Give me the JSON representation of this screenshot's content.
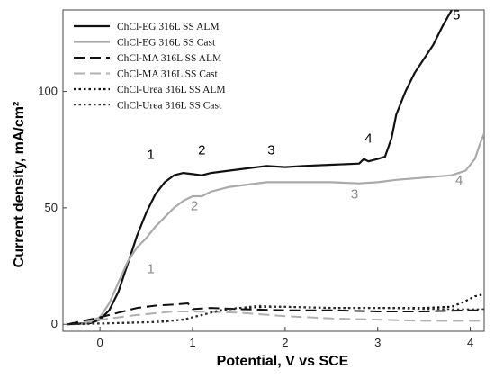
{
  "chart_data": {
    "type": "line",
    "xlabel": "Potential, V vs SCE",
    "ylabel": "Current density, mA/cm²",
    "xlim": [
      -0.4,
      4.15
    ],
    "ylim": [
      -3,
      135
    ],
    "xticks": [
      0,
      1,
      2,
      3,
      4
    ],
    "yticks": [
      0,
      50,
      100
    ],
    "grid": false,
    "legend_position": "top-left",
    "series": [
      {
        "name": "ChCl-EG 316L SS ALM",
        "color": "#111111",
        "dash": "solid",
        "width": 2.2,
        "points": [
          [
            -0.35,
            0
          ],
          [
            -0.1,
            0.5
          ],
          [
            0,
            2
          ],
          [
            0.1,
            6
          ],
          [
            0.2,
            14
          ],
          [
            0.3,
            26
          ],
          [
            0.4,
            38
          ],
          [
            0.5,
            48
          ],
          [
            0.6,
            56
          ],
          [
            0.7,
            61
          ],
          [
            0.8,
            64
          ],
          [
            0.9,
            65
          ],
          [
            1.0,
            64.5
          ],
          [
            1.1,
            64
          ],
          [
            1.2,
            65
          ],
          [
            1.4,
            66
          ],
          [
            1.6,
            67
          ],
          [
            1.8,
            68
          ],
          [
            2.0,
            67.5
          ],
          [
            2.2,
            68
          ],
          [
            2.5,
            68.5
          ],
          [
            2.8,
            69
          ],
          [
            2.85,
            71
          ],
          [
            2.9,
            70
          ],
          [
            3.0,
            71
          ],
          [
            3.08,
            72
          ],
          [
            3.15,
            80
          ],
          [
            3.2,
            90
          ],
          [
            3.3,
            100
          ],
          [
            3.4,
            108
          ],
          [
            3.5,
            114
          ],
          [
            3.6,
            120
          ],
          [
            3.7,
            128
          ],
          [
            3.8,
            135
          ]
        ]
      },
      {
        "name": "ChCl-EG 316L SS Cast",
        "color": "#aaaaaa",
        "dash": "solid",
        "width": 2.2,
        "points": [
          [
            -0.2,
            0
          ],
          [
            0,
            3
          ],
          [
            0.1,
            9
          ],
          [
            0.2,
            18
          ],
          [
            0.3,
            27
          ],
          [
            0.4,
            33
          ],
          [
            0.5,
            37
          ],
          [
            0.6,
            42
          ],
          [
            0.7,
            46
          ],
          [
            0.8,
            50
          ],
          [
            0.9,
            53
          ],
          [
            1.0,
            55
          ],
          [
            1.1,
            55
          ],
          [
            1.2,
            57
          ],
          [
            1.4,
            59
          ],
          [
            1.6,
            60
          ],
          [
            1.8,
            61
          ],
          [
            2.0,
            61
          ],
          [
            2.2,
            61
          ],
          [
            2.5,
            61
          ],
          [
            2.8,
            60.5
          ],
          [
            3.0,
            61
          ],
          [
            3.2,
            62
          ],
          [
            3.5,
            63
          ],
          [
            3.8,
            64
          ],
          [
            3.95,
            66
          ],
          [
            4.05,
            71
          ],
          [
            4.1,
            77
          ],
          [
            4.15,
            82
          ]
        ]
      },
      {
        "name": "ChCl-MA 316L SS ALM",
        "color": "#111111",
        "dash": "12,6",
        "width": 2,
        "points": [
          [
            -0.35,
            0
          ],
          [
            0,
            3
          ],
          [
            0.2,
            5
          ],
          [
            0.4,
            7
          ],
          [
            0.6,
            8
          ],
          [
            0.8,
            8.5
          ],
          [
            0.95,
            9
          ],
          [
            1.0,
            6.5
          ],
          [
            1.2,
            7
          ],
          [
            1.5,
            6.5
          ],
          [
            2.0,
            6
          ],
          [
            2.5,
            6
          ],
          [
            3.0,
            5.5
          ],
          [
            3.5,
            5.5
          ],
          [
            4.0,
            6
          ],
          [
            4.15,
            6
          ]
        ]
      },
      {
        "name": "ChCl-MA 316L SS Cast",
        "color": "#b0b0b0",
        "dash": "12,6",
        "width": 2,
        "points": [
          [
            -0.2,
            0
          ],
          [
            0,
            2
          ],
          [
            0.4,
            4
          ],
          [
            0.8,
            5.5
          ],
          [
            1.0,
            5.5
          ],
          [
            1.5,
            5
          ],
          [
            2.0,
            3.5
          ],
          [
            2.5,
            2.5
          ],
          [
            3.0,
            2
          ],
          [
            3.5,
            1.5
          ],
          [
            4.0,
            1.5
          ],
          [
            4.15,
            1.5
          ]
        ]
      },
      {
        "name": "ChCl-Urea 316L SS ALM",
        "color": "#111111",
        "dash": "2.5,3",
        "width": 2.2,
        "points": [
          [
            -0.35,
            0
          ],
          [
            0.2,
            0.5
          ],
          [
            0.6,
            1
          ],
          [
            0.9,
            2
          ],
          [
            1.1,
            4
          ],
          [
            1.3,
            6
          ],
          [
            1.5,
            7
          ],
          [
            1.8,
            7.5
          ],
          [
            2.0,
            7.5
          ],
          [
            2.5,
            7
          ],
          [
            3.0,
            7
          ],
          [
            3.5,
            7
          ],
          [
            3.8,
            7.5
          ],
          [
            3.95,
            10
          ],
          [
            4.05,
            12
          ],
          [
            4.15,
            13
          ]
        ]
      },
      {
        "name": "ChCl-Urea 316L SS Cast",
        "color": "#333333",
        "dash": "2.5,3",
        "width": 1.6,
        "points": [
          [
            -0.35,
            0
          ],
          [
            0.3,
            0.5
          ],
          [
            0.7,
            1
          ],
          [
            0.95,
            2.5
          ],
          [
            1.2,
            5
          ],
          [
            1.5,
            7
          ],
          [
            1.7,
            8
          ],
          [
            2.0,
            7.5
          ],
          [
            2.5,
            7
          ],
          [
            3.0,
            7
          ],
          [
            3.5,
            6.5
          ],
          [
            4.0,
            6.5
          ],
          [
            4.15,
            6.5
          ]
        ]
      }
    ],
    "annotations": [
      {
        "text": "1",
        "x": 0.55,
        "y": 71,
        "color": "#000000"
      },
      {
        "text": "2",
        "x": 1.1,
        "y": 73,
        "color": "#000000"
      },
      {
        "text": "3",
        "x": 1.85,
        "y": 73,
        "color": "#000000"
      },
      {
        "text": "4",
        "x": 2.9,
        "y": 78,
        "color": "#000000"
      },
      {
        "text": "5",
        "x": 3.85,
        "y": 131,
        "color": "#000000"
      },
      {
        "text": "1",
        "x": 0.55,
        "y": 22,
        "color": "#8a8a8a"
      },
      {
        "text": "2",
        "x": 1.02,
        "y": 49,
        "color": "#8a8a8a"
      },
      {
        "text": "3",
        "x": 2.75,
        "y": 54,
        "color": "#8a8a8a"
      },
      {
        "text": "4",
        "x": 3.88,
        "y": 60,
        "color": "#8a8a8a"
      }
    ]
  }
}
